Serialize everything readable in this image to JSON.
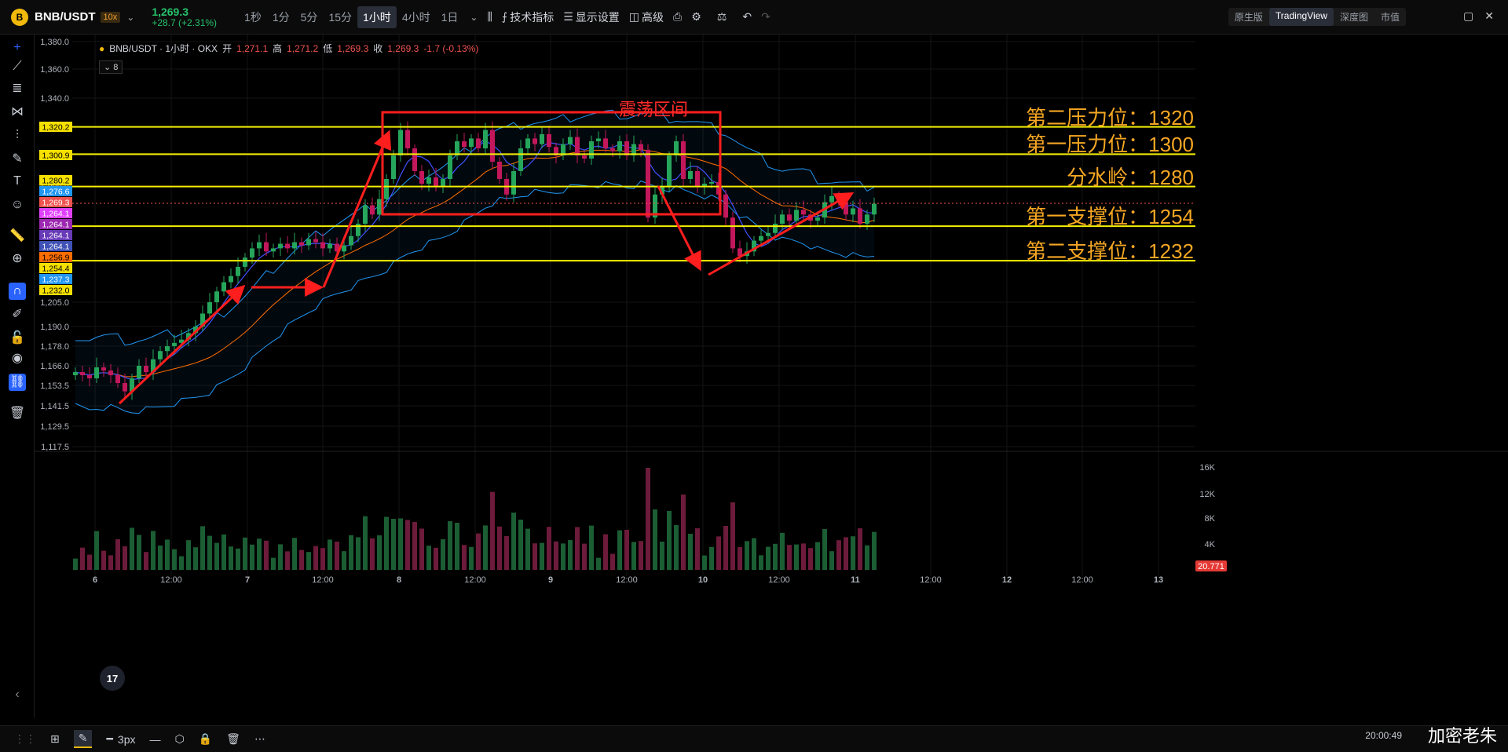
{
  "topbar": {
    "symbol": "BNB/USDT",
    "leverage": "10x",
    "last_price": "1,269.3",
    "change": "+28.7 (+2.31%)",
    "timeframes": [
      "1秒",
      "1分",
      "5分",
      "15分",
      "1小时",
      "4小时",
      "1日"
    ],
    "active_timeframe": "1小时",
    "tech_indicators": "技术指标",
    "display_settings": "显示设置",
    "advanced": "高级",
    "view_tabs": [
      "原生版",
      "TradingView",
      "深度图",
      "市值"
    ],
    "active_view": "TradingView"
  },
  "legend": {
    "title": "BNB/USDT · 1小时 · OKX",
    "open_label": "开",
    "open": "1,271.1",
    "high_label": "高",
    "high": "1,271.2",
    "low_label": "低",
    "low": "1,269.3",
    "close_label": "收",
    "close": "1,269.3",
    "change": "-1.7 (-0.13%)",
    "indicator_count": "8"
  },
  "annotations": {
    "range_title": "震荡区间",
    "levels": [
      {
        "label": "第二压力位：1320",
        "price": 1320.2
      },
      {
        "label": "第一压力位：1300",
        "price": 1300.9
      },
      {
        "label": "分水岭：1280",
        "price": 1280.2
      },
      {
        "label": "第一支撑位：1254",
        "price": 1254.4
      },
      {
        "label": "第二支撑位：1232",
        "price": 1232.0
      }
    ]
  },
  "left_price_tags": [
    {
      "text": "1,320.2",
      "price": 1320.2,
      "color": "#f5e000"
    },
    {
      "text": "1,300.9",
      "price": 1300.9,
      "color": "#f5e000"
    },
    {
      "text": "1,280.2",
      "price": 1280.2,
      "color": "#f5e000"
    },
    {
      "text": "1,276.6",
      "price": 1276.6,
      "color": "#2196f3"
    },
    {
      "text": "1,269.3",
      "price": 1269.3,
      "color": "#ef5350"
    },
    {
      "text": "1,264.1",
      "price": 1264.1,
      "color": "#e040fb"
    },
    {
      "text": "1,264.1",
      "price": 1264.1,
      "color": "#9c27b0"
    },
    {
      "text": "1,264.1",
      "price": 1264.1,
      "color": "#673ab7"
    },
    {
      "text": "1,264.1",
      "price": 1264.1,
      "color": "#3f51b5"
    },
    {
      "text": "1,256.9",
      "price": 1256.9,
      "color": "#ff6d00"
    },
    {
      "text": "1,254.4",
      "price": 1254.4,
      "color": "#f5e000"
    },
    {
      "text": "1,237.3",
      "price": 1237.3,
      "color": "#2196f3"
    },
    {
      "text": "1,232.0",
      "price": 1232.0,
      "color": "#f5e000"
    }
  ],
  "bottombar": {
    "stroke_width": "3px",
    "time": "20:00:49",
    "watermark": "加密老朱"
  },
  "chart_data": [
    {
      "type": "candlestick",
      "title": "",
      "y_ticks": [
        "1,380.0",
        "1,360.0",
        "1,340.0",
        "1,320.0",
        "1,300.0",
        "1,280.0",
        "1,205.0",
        "1,190.0",
        "1,178.0",
        "1,166.0",
        "1,153.5",
        "1,141.5",
        "1,129.5",
        "1,117.5"
      ],
      "x_ticks": [
        "6",
        "12:00",
        "7",
        "12:00",
        "8",
        "12:00",
        "9",
        "12:00",
        "10",
        "12:00",
        "11",
        "12:00",
        "12",
        "12:00",
        "13"
      ],
      "series": [
        {
          "close": [
            1162,
            1160,
            1158,
            1165,
            1163,
            1160,
            1155,
            1150,
            1158,
            1166,
            1162,
            1170,
            1175,
            1178,
            1180,
            1182,
            1186,
            1190,
            1198,
            1205,
            1212,
            1218,
            1222,
            1228,
            1234,
            1240,
            1244,
            1238,
            1240,
            1243,
            1240,
            1244,
            1242,
            1246,
            1244,
            1240,
            1243,
            1238,
            1242,
            1248,
            1256,
            1268,
            1262,
            1272,
            1285,
            1300,
            1318,
            1305,
            1290,
            1282,
            1286,
            1280,
            1285,
            1300,
            1310,
            1306,
            1312,
            1305,
            1318,
            1296,
            1285,
            1275,
            1290,
            1305,
            1312,
            1308,
            1315,
            1306,
            1300,
            1308,
            1313,
            1300,
            1298,
            1310,
            1312,
            1305,
            1303,
            1310,
            1300,
            1308,
            1304,
            1260,
            1275,
            1280,
            1300,
            1310,
            1285,
            1290,
            1280,
            1282,
            1283,
            1275,
            1260,
            1240,
            1235,
            1238,
            1245,
            1248,
            1250,
            1256,
            1262,
            1258,
            1265,
            1262,
            1258,
            1260,
            1270,
            1274,
            1270,
            1262,
            1266,
            1256,
            1262,
            1269
          ]
        }
      ],
      "ylim": [
        1117.5,
        1380.0
      ]
    },
    {
      "type": "bar",
      "title": "",
      "y_ticks": [
        "16K",
        "12K",
        "8K",
        "4K"
      ],
      "last_volume": "20.771",
      "ylim": [
        0,
        18000
      ]
    }
  ]
}
